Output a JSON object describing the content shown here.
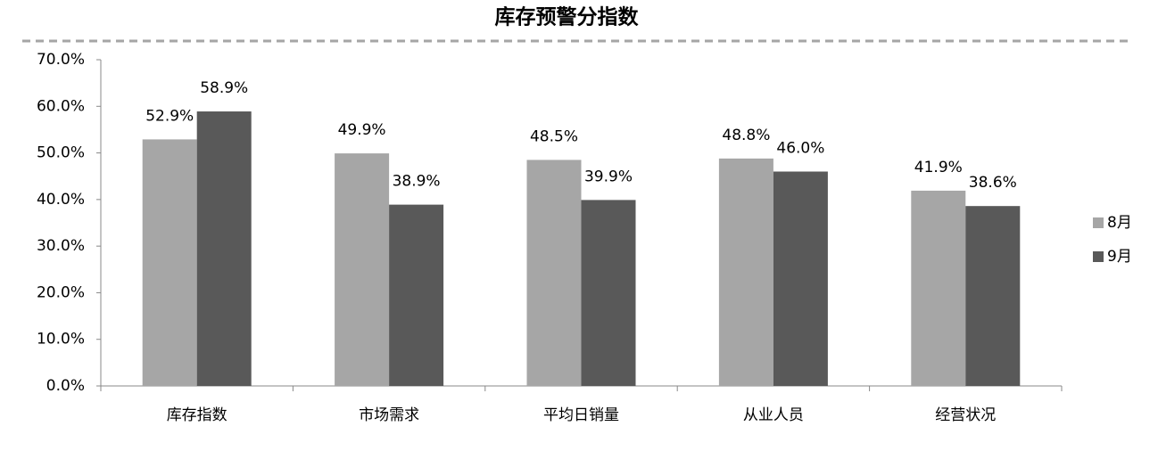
{
  "chart_data": {
    "type": "bar",
    "title": "库存预警分指数",
    "categories": [
      "库存指数",
      "市场需求",
      "平均日销量",
      "从业人员",
      "经营状况"
    ],
    "series": [
      {
        "name": "8月",
        "color": "#a6a6a6",
        "values": [
          52.9,
          49.9,
          48.5,
          48.8,
          41.9
        ],
        "value_labels": [
          "52.9%",
          "49.9%",
          "48.5%",
          "48.8%",
          "41.9%"
        ]
      },
      {
        "name": "9月",
        "color": "#595959",
        "values": [
          58.9,
          38.9,
          39.9,
          46.0,
          38.6
        ],
        "value_labels": [
          "58.9%",
          "38.9%",
          "39.9%",
          "46.0%",
          "38.6%"
        ]
      }
    ],
    "ylim": [
      0,
      70
    ],
    "yticks": [
      {
        "value": 0,
        "label": "0.0%"
      },
      {
        "value": 10,
        "label": "10.0%"
      },
      {
        "value": 20,
        "label": "20.0%"
      },
      {
        "value": 30,
        "label": "30.0%"
      },
      {
        "value": 40,
        "label": "40.0%"
      },
      {
        "value": 50,
        "label": "50.0%"
      },
      {
        "value": 60,
        "label": "60.0%"
      },
      {
        "value": 70,
        "label": "70.0%"
      }
    ],
    "grid": false,
    "legend": "right"
  }
}
